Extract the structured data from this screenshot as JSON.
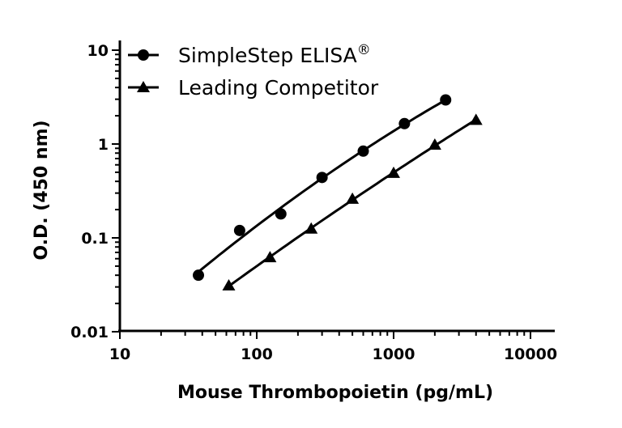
{
  "chart_data": {
    "type": "scatter",
    "title": "",
    "xlabel": "Mouse Thrombopoietin (pg/mL)",
    "ylabel": "O.D. (450 nm)",
    "xscale": "log",
    "yscale": "log",
    "xlim": [
      10,
      15000
    ],
    "ylim": [
      0.01,
      10
    ],
    "xticks": [
      "10",
      "100",
      "1000",
      "10000"
    ],
    "yticks": [
      "0.01",
      "0.1",
      "1",
      "10"
    ],
    "grid": false,
    "legend_position": "top-left",
    "series": [
      {
        "name": "SimpleStep ELISA",
        "name_suffix": "®",
        "marker": "circle",
        "color": "#000000",
        "x": [
          37.5,
          75,
          150,
          300,
          600,
          1200,
          2400
        ],
        "y": [
          0.04,
          0.12,
          0.18,
          0.44,
          0.84,
          1.65,
          2.95
        ]
      },
      {
        "name": "Leading Competitor",
        "marker": "triangle",
        "color": "#000000",
        "x": [
          62.5,
          125,
          250,
          500,
          1000,
          2000,
          4000
        ],
        "y": [
          0.031,
          0.062,
          0.125,
          0.26,
          0.49,
          0.98,
          1.8
        ]
      }
    ]
  }
}
